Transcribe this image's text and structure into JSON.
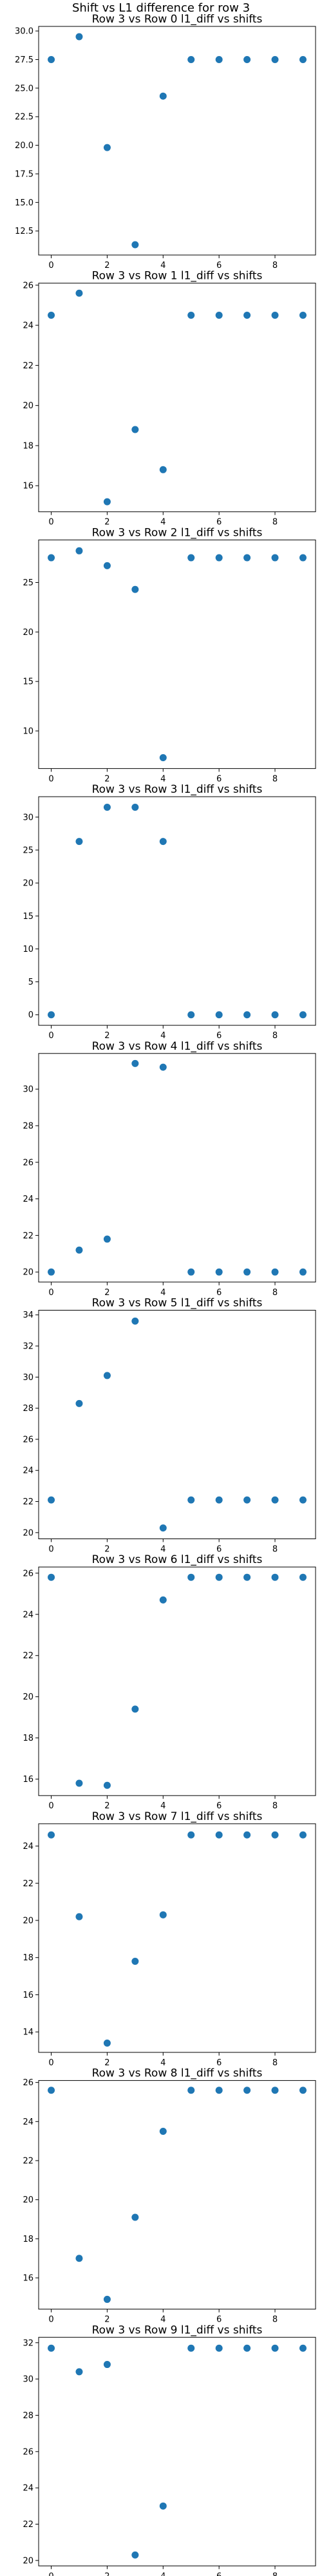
{
  "figure": {
    "suptitle": "Shift vs L1 difference for row 3"
  },
  "colors": {
    "marker": "#1f77b4",
    "axis": "#000000",
    "background": "#ffffff"
  },
  "chart_data": [
    {
      "type": "scatter",
      "title": "Row 3 vs Row 0 l1_diff vs shifts",
      "xlabel": "",
      "ylabel": "",
      "x": [
        0,
        1,
        2,
        3,
        4,
        5,
        6,
        7,
        8,
        9
      ],
      "y": [
        27.5,
        29.5,
        19.8,
        11.3,
        24.3,
        27.5,
        27.5,
        27.5,
        27.5,
        27.5
      ],
      "xlim": [
        -0.45,
        9.45
      ],
      "ylim": [
        10.4,
        30.4
      ],
      "xticks": [
        0,
        2,
        4,
        6,
        8
      ],
      "yticks": [
        12.5,
        15.0,
        17.5,
        20.0,
        22.5,
        25.0,
        27.5,
        30.0
      ],
      "ytick_labels": [
        "12.5",
        "15.0",
        "17.5",
        "20.0",
        "22.5",
        "25.0",
        "27.5",
        "30.0"
      ],
      "grid": false
    },
    {
      "type": "scatter",
      "title": "Row 3 vs Row 1 l1_diff vs shifts",
      "xlabel": "",
      "ylabel": "",
      "x": [
        0,
        1,
        2,
        3,
        4,
        5,
        6,
        7,
        8,
        9
      ],
      "y": [
        24.5,
        25.6,
        15.2,
        18.8,
        16.8,
        24.5,
        24.5,
        24.5,
        24.5,
        24.5
      ],
      "xlim": [
        -0.45,
        9.45
      ],
      "ylim": [
        14.7,
        26.1
      ],
      "xticks": [
        0,
        2,
        4,
        6,
        8
      ],
      "yticks": [
        16,
        18,
        20,
        22,
        24,
        26
      ],
      "ytick_labels": [
        "16",
        "18",
        "20",
        "22",
        "24",
        "26"
      ],
      "grid": false
    },
    {
      "type": "scatter",
      "title": "Row 3 vs Row 2 l1_diff vs shifts",
      "xlabel": "",
      "ylabel": "",
      "x": [
        0,
        1,
        2,
        3,
        4,
        5,
        6,
        7,
        8,
        9
      ],
      "y": [
        27.5,
        28.2,
        26.7,
        24.3,
        7.3,
        27.5,
        27.5,
        27.5,
        27.5,
        27.5
      ],
      "xlim": [
        -0.45,
        9.45
      ],
      "ylim": [
        6.2,
        29.3
      ],
      "xticks": [
        0,
        2,
        4,
        6,
        8
      ],
      "yticks": [
        10,
        15,
        20,
        25
      ],
      "ytick_labels": [
        "10",
        "15",
        "20",
        "25"
      ],
      "grid": false
    },
    {
      "type": "scatter",
      "title": "Row 3 vs Row 3 l1_diff vs shifts",
      "xlabel": "",
      "ylabel": "",
      "x": [
        0,
        1,
        2,
        3,
        4,
        5,
        6,
        7,
        8,
        9
      ],
      "y": [
        0.0,
        26.3,
        31.5,
        31.5,
        26.3,
        0.0,
        0.0,
        0.0,
        0.0,
        0.0
      ],
      "xlim": [
        -0.45,
        9.45
      ],
      "ylim": [
        -1.6,
        33.1
      ],
      "xticks": [
        0,
        2,
        4,
        6,
        8
      ],
      "yticks": [
        0,
        5,
        10,
        15,
        20,
        25,
        30
      ],
      "ytick_labels": [
        "0",
        "5",
        "10",
        "15",
        "20",
        "25",
        "30"
      ],
      "grid": false
    },
    {
      "type": "scatter",
      "title": "Row 3 vs Row 4 l1_diff vs shifts",
      "xlabel": "",
      "ylabel": "",
      "x": [
        0,
        1,
        2,
        3,
        4,
        5,
        6,
        7,
        8,
        9
      ],
      "y": [
        20.0,
        21.2,
        21.8,
        31.4,
        31.2,
        20.0,
        20.0,
        20.0,
        20.0,
        20.0
      ],
      "xlim": [
        -0.45,
        9.45
      ],
      "ylim": [
        19.45,
        31.95
      ],
      "xticks": [
        0,
        2,
        4,
        6,
        8
      ],
      "yticks": [
        20,
        22,
        24,
        26,
        28,
        30
      ],
      "ytick_labels": [
        "20",
        "22",
        "24",
        "26",
        "28",
        "30"
      ],
      "grid": false
    },
    {
      "type": "scatter",
      "title": "Row 3 vs Row 5 l1_diff vs shifts",
      "xlabel": "",
      "ylabel": "",
      "x": [
        0,
        1,
        2,
        3,
        4,
        5,
        6,
        7,
        8,
        9
      ],
      "y": [
        22.1,
        28.3,
        30.1,
        33.6,
        20.3,
        22.1,
        22.1,
        22.1,
        22.1,
        22.1
      ],
      "xlim": [
        -0.45,
        9.45
      ],
      "ylim": [
        19.6,
        34.3
      ],
      "xticks": [
        0,
        2,
        4,
        6,
        8
      ],
      "yticks": [
        20,
        22,
        24,
        26,
        28,
        30,
        32,
        34
      ],
      "ytick_labels": [
        "20",
        "22",
        "24",
        "26",
        "28",
        "30",
        "32",
        "34"
      ],
      "grid": false
    },
    {
      "type": "scatter",
      "title": "Row 3 vs Row 6 l1_diff vs shifts",
      "xlabel": "",
      "ylabel": "",
      "x": [
        0,
        1,
        2,
        3,
        4,
        5,
        6,
        7,
        8,
        9
      ],
      "y": [
        25.8,
        15.8,
        15.7,
        19.4,
        24.7,
        25.8,
        25.8,
        25.8,
        25.8,
        25.8
      ],
      "xlim": [
        -0.45,
        9.45
      ],
      "ylim": [
        15.2,
        26.3
      ],
      "xticks": [
        0,
        2,
        4,
        6,
        8
      ],
      "yticks": [
        16,
        18,
        20,
        22,
        24,
        26
      ],
      "ytick_labels": [
        "16",
        "18",
        "20",
        "22",
        "24",
        "26"
      ],
      "grid": false
    },
    {
      "type": "scatter",
      "title": "Row 3 vs Row 7 l1_diff vs shifts",
      "xlabel": "",
      "ylabel": "",
      "x": [
        0,
        1,
        2,
        3,
        4,
        5,
        6,
        7,
        8,
        9
      ],
      "y": [
        24.6,
        20.2,
        13.4,
        17.8,
        20.3,
        24.6,
        24.6,
        24.6,
        24.6,
        24.6
      ],
      "xlim": [
        -0.45,
        9.45
      ],
      "ylim": [
        12.9,
        25.2
      ],
      "xticks": [
        0,
        2,
        4,
        6,
        8
      ],
      "yticks": [
        14,
        16,
        18,
        20,
        22,
        24
      ],
      "ytick_labels": [
        "14",
        "16",
        "18",
        "20",
        "22",
        "24"
      ],
      "grid": false
    },
    {
      "type": "scatter",
      "title": "Row 3 vs Row 8 l1_diff vs shifts",
      "xlabel": "",
      "ylabel": "",
      "x": [
        0,
        1,
        2,
        3,
        4,
        5,
        6,
        7,
        8,
        9
      ],
      "y": [
        25.6,
        17.0,
        14.9,
        19.1,
        23.5,
        25.6,
        25.6,
        25.6,
        25.6,
        25.6
      ],
      "xlim": [
        -0.45,
        9.45
      ],
      "ylim": [
        14.4,
        26.1
      ],
      "xticks": [
        0,
        2,
        4,
        6,
        8
      ],
      "yticks": [
        16,
        18,
        20,
        22,
        24,
        26
      ],
      "ytick_labels": [
        "16",
        "18",
        "20",
        "22",
        "24",
        "26"
      ],
      "grid": false
    },
    {
      "type": "scatter",
      "title": "Row 3 vs Row 9 l1_diff vs shifts",
      "xlabel": "",
      "ylabel": "",
      "x": [
        0,
        1,
        2,
        3,
        4,
        5,
        6,
        7,
        8,
        9
      ],
      "y": [
        31.7,
        30.4,
        30.8,
        20.3,
        23.0,
        31.7,
        31.7,
        31.7,
        31.7,
        31.7
      ],
      "xlim": [
        -0.45,
        9.45
      ],
      "ylim": [
        19.7,
        32.3
      ],
      "xticks": [
        0,
        2,
        4,
        6,
        8
      ],
      "yticks": [
        20,
        22,
        24,
        26,
        28,
        30,
        32
      ],
      "ytick_labels": [
        "20",
        "22",
        "24",
        "26",
        "28",
        "30",
        "32"
      ],
      "grid": false
    }
  ]
}
